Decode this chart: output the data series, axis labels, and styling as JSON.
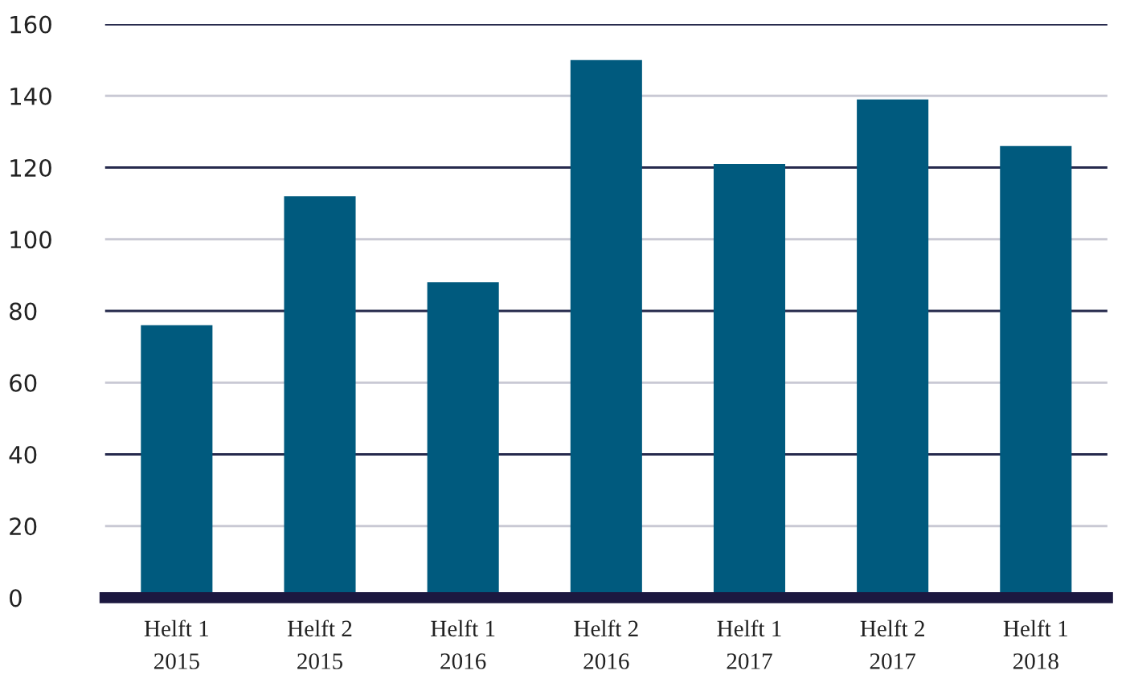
{
  "chart_data": {
    "type": "bar",
    "categories": [
      "Helft 1\n2015",
      "Helft 2\n2015",
      "Helft 1\n2016",
      "Helft 2\n2016",
      "Helft 1\n2017",
      "Helft 2\n2017",
      "Helft 1\n2018"
    ],
    "values": [
      76,
      112,
      88,
      150,
      121,
      139,
      126
    ],
    "color": "#005a7e",
    "ylim": [
      0,
      160
    ],
    "yticks": [
      0,
      20,
      40,
      60,
      80,
      100,
      120,
      140,
      160
    ],
    "grid": "y"
  }
}
